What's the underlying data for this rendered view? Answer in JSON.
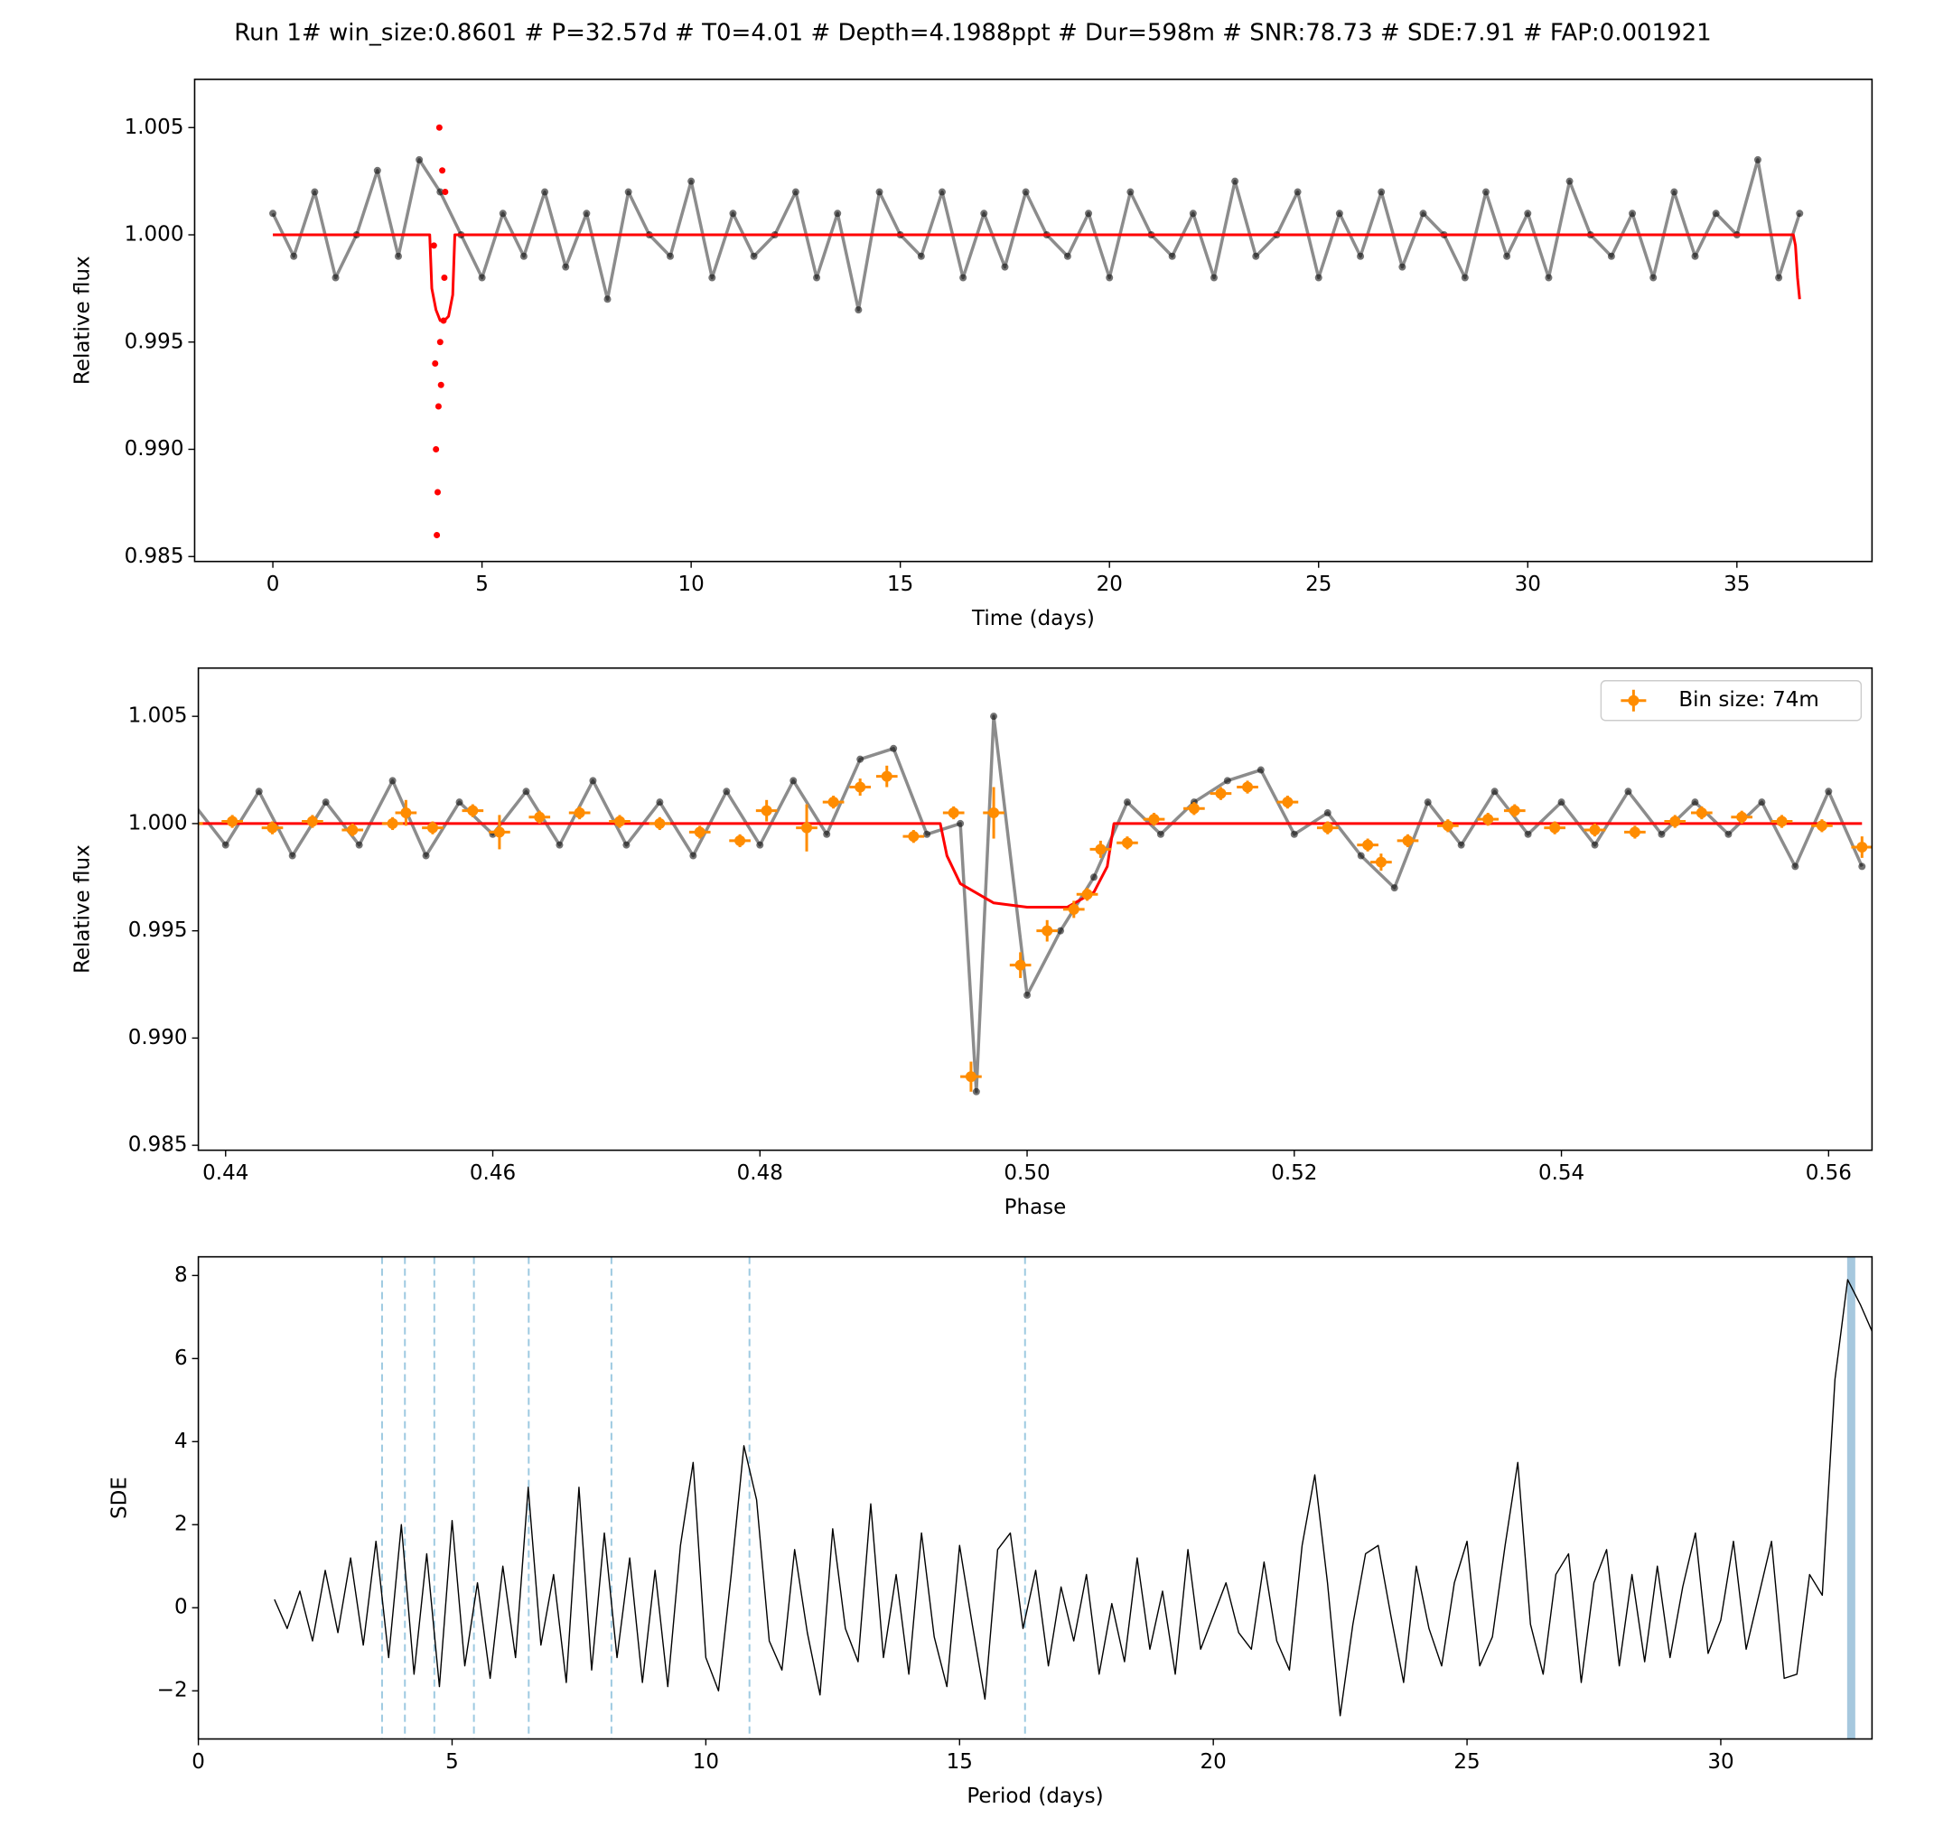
{
  "title": "Run 1# win_size:0.8601 # P=32.57d # T0=4.01 # Depth=4.1988ppt # Dur=598m # SNR:78.73 # SDE:7.91 # FAP:0.001921",
  "chart_data": [
    {
      "type": "scatter",
      "xlabel": "Time (days)",
      "ylabel": "Relative flux",
      "xlim": [
        -1.87,
        38.23
      ],
      "ylim": [
        0.98477,
        1.00725
      ],
      "xticks": [
        0,
        5,
        10,
        15,
        20,
        25,
        30,
        35
      ],
      "yticks": [
        0.985,
        {
          "value": 0.99,
          "label": "0.990"
        },
        0.995,
        {
          "value": 1,
          "label": "1.000"
        },
        1.005
      ],
      "series": [
        {
          "style": "trace",
          "color": "#000000",
          "x": [
            0,
            0.5,
            1,
            1.5,
            2,
            2.5,
            3,
            3.5,
            4,
            4.5,
            5,
            5.5,
            6,
            6.5,
            7,
            7.5,
            8,
            8.5,
            9,
            9.5,
            10,
            10.5,
            11,
            11.5,
            12,
            12.5,
            13,
            13.5,
            14,
            14.5,
            15,
            15.5,
            16,
            16.5,
            17,
            17.5,
            18,
            18.5,
            19,
            19.5,
            20,
            20.5,
            21,
            21.5,
            22,
            22.5,
            23,
            23.5,
            24,
            24.5,
            25,
            25.5,
            26,
            26.5,
            27,
            27.5,
            28,
            28.5,
            29,
            29.5,
            30,
            30.5,
            31,
            31.5,
            32,
            32.5,
            33,
            33.5,
            34,
            34.5,
            35,
            35.5,
            36,
            36.5
          ],
          "values": [
            1.001,
            0.999,
            1.002,
            0.998,
            1.0,
            1.003,
            0.999,
            1.0035,
            1.002,
            1.0,
            0.998,
            1.001,
            0.999,
            1.002,
            0.9985,
            1.001,
            0.997,
            1.002,
            1.0,
            0.999,
            1.0025,
            0.998,
            1.001,
            0.999,
            1.0,
            1.002,
            0.998,
            1.001,
            0.9965,
            1.002,
            1.0,
            0.999,
            1.002,
            0.998,
            1.001,
            0.9985,
            1.002,
            1.0,
            0.999,
            1.001,
            0.998,
            1.002,
            1.0,
            0.999,
            1.001,
            0.998,
            1.0025,
            0.999,
            1.0,
            1.002,
            0.998,
            1.001,
            0.999,
            1.002,
            0.9985,
            1.001,
            1.0,
            0.998,
            1.002,
            0.999,
            1.001,
            0.998,
            1.0025,
            1.0,
            0.999,
            1.001,
            0.998,
            1.002,
            0.999,
            1.001,
            1.0,
            1.0035,
            0.998,
            1.001
          ]
        },
        {
          "style": "points",
          "color": "#ff0000",
          "x": [
            3.85,
            3.88,
            3.9,
            3.92,
            3.94,
            3.96,
            3.98,
            4.0,
            4.02,
            4.05,
            4.08,
            4.1,
            4.12
          ],
          "values": [
            0.9995,
            0.994,
            0.99,
            0.986,
            0.988,
            0.992,
            1.005,
            0.995,
            0.993,
            1.003,
            0.996,
            0.998,
            1.002
          ]
        },
        {
          "style": "line",
          "color": "#ff0000",
          "x": [
            0,
            3.75,
            3.8,
            3.9,
            4.0,
            4.1,
            4.2,
            4.3,
            4.35,
            36.35,
            36.4,
            36.45,
            36.5
          ],
          "values": [
            1,
            1,
            0.9975,
            0.9965,
            0.996,
            0.996,
            0.9962,
            0.9972,
            1,
            1,
            0.9995,
            0.998,
            0.997
          ]
        }
      ]
    },
    {
      "type": "scatter",
      "xlabel": "Phase",
      "ylabel": "Relative flux",
      "xlim": [
        0.43796,
        0.56325
      ],
      "ylim": [
        0.98477,
        1.00725
      ],
      "xticks": [
        0.44,
        0.46,
        0.48,
        {
          "value": 0.5,
          "label": "0.50"
        },
        0.52,
        0.54,
        0.56
      ],
      "yticks": [
        0.985,
        {
          "value": 0.99,
          "label": "0.990"
        },
        0.995,
        {
          "value": 1,
          "label": "1.000"
        },
        1.005
      ],
      "legend": "upper right",
      "series": [
        {
          "style": "trace",
          "color": "#000000",
          "x": [
            0.4375,
            0.44,
            0.4425,
            0.445,
            0.4475,
            0.45,
            0.4525,
            0.455,
            0.4575,
            0.46,
            0.4625,
            0.465,
            0.4675,
            0.47,
            0.4725,
            0.475,
            0.4775,
            0.48,
            0.4825,
            0.485,
            0.4875,
            0.49,
            0.4925,
            0.495,
            0.4962,
            0.4975,
            0.5,
            0.5025,
            0.505,
            0.5075,
            0.51,
            0.5125,
            0.515,
            0.5175,
            0.52,
            0.5225,
            0.525,
            0.5275,
            0.53,
            0.5325,
            0.535,
            0.5375,
            0.54,
            0.5425,
            0.545,
            0.5475,
            0.55,
            0.5525,
            0.555,
            0.5575,
            0.56,
            0.5625
          ],
          "values": [
            1.001,
            0.999,
            1.0015,
            0.9985,
            1.001,
            0.999,
            1.002,
            0.9985,
            1.001,
            0.9995,
            1.0015,
            0.999,
            1.002,
            0.999,
            1.001,
            0.9985,
            1.0015,
            0.999,
            1.002,
            0.9995,
            1.003,
            1.0035,
            0.9995,
            1.0,
            0.9875,
            1.005,
            0.992,
            0.995,
            0.9975,
            1.001,
            0.9995,
            1.001,
            1.002,
            1.0025,
            0.9995,
            1.0005,
            0.9985,
            0.997,
            1.001,
            0.999,
            1.0015,
            0.9995,
            1.001,
            0.999,
            1.0015,
            0.9995,
            1.001,
            0.9995,
            1.001,
            0.998,
            1.0015,
            0.998
          ]
        },
        {
          "style": "line",
          "color": "#ff0000",
          "x": [
            0.4375,
            0.4935,
            0.494,
            0.495,
            0.4975,
            0.5,
            0.503,
            0.505,
            0.506,
            0.5065,
            0.5625
          ],
          "values": [
            1,
            1,
            0.9985,
            0.9972,
            0.9963,
            0.9961,
            0.9961,
            0.9968,
            0.998,
            1,
            1
          ]
        },
        {
          "style": "errorbar",
          "name": "Bin size: 74m",
          "color": "#ff8c00",
          "xerr": 0.0008,
          "x": [
            0.4375,
            0.4405,
            0.4435,
            0.4465,
            0.4495,
            0.4525,
            0.4535,
            0.4555,
            0.4585,
            0.4605,
            0.4635,
            0.4665,
            0.4695,
            0.4725,
            0.4755,
            0.4785,
            0.4805,
            0.4835,
            0.4855,
            0.4875,
            0.4895,
            0.4915,
            0.4945,
            0.4958,
            0.4975,
            0.4995,
            0.5015,
            0.5035,
            0.5045,
            0.5055,
            0.5075,
            0.5095,
            0.5125,
            0.5145,
            0.5165,
            0.5195,
            0.5225,
            0.5255,
            0.5265,
            0.5285,
            0.5315,
            0.5345,
            0.5365,
            0.5395,
            0.5425,
            0.5455,
            0.5485,
            0.5505,
            0.5535,
            0.5565,
            0.5595,
            0.5625
          ],
          "values": [
            1.0,
            1.0001,
            0.9998,
            1.0001,
            0.9997,
            1.0,
            1.0005,
            0.9998,
            1.0006,
            0.9996,
            1.0003,
            1.0005,
            1.0001,
            1.0,
            0.9996,
            0.9992,
            1.0006,
            0.9998,
            1.001,
            1.0017,
            1.0022,
            0.9994,
            1.0005,
            0.9882,
            1.0005,
            0.9934,
            0.995,
            0.996,
            0.9967,
            0.9988,
            0.9991,
            1.0002,
            1.0007,
            1.0014,
            1.0017,
            1.001,
            0.9998,
            0.999,
            0.9982,
            0.9992,
            0.9999,
            1.0002,
            1.0006,
            0.9998,
            0.9997,
            0.9996,
            1.0001,
            1.0005,
            1.0003,
            1.0001,
            0.9999,
            0.9989
          ],
          "errors": [
            0.0003,
            0.0003,
            0.0003,
            0.0003,
            0.0003,
            0.0003,
            0.0006,
            0.0003,
            0.0003,
            0.0008,
            0.0003,
            0.0003,
            0.0003,
            0.0003,
            0.0003,
            0.0003,
            0.0005,
            0.0011,
            0.0003,
            0.0004,
            0.0005,
            0.0003,
            0.0003,
            0.0007,
            0.0012,
            0.0006,
            0.0005,
            0.0004,
            0.0003,
            0.0004,
            0.0003,
            0.0003,
            0.0003,
            0.0003,
            0.0003,
            0.0003,
            0.0003,
            0.0003,
            0.0004,
            0.0003,
            0.0003,
            0.0003,
            0.0003,
            0.0003,
            0.0003,
            0.0003,
            0.0003,
            0.0003,
            0.0003,
            0.0003,
            0.0003,
            0.0005
          ]
        }
      ]
    },
    {
      "type": "line",
      "xlabel": "Period (days)",
      "ylabel": "SDE",
      "xlim": [
        0,
        32.98
      ],
      "ylim": [
        -3.16,
        8.45
      ],
      "xticks": [
        0,
        5,
        10,
        15,
        20,
        25,
        30
      ],
      "yticks": [
        {
          "value": -2,
          "label": "−2"
        },
        0,
        2,
        4,
        6,
        8
      ],
      "vlines": {
        "color": "#9ecae1",
        "x": [
          3.62,
          4.07,
          4.65,
          5.43,
          6.51,
          8.14,
          10.86,
          16.29
        ]
      },
      "highlight": {
        "color": "#a6c8de",
        "x": 32.57
      },
      "series": [
        {
          "style": "line",
          "color": "#000000",
          "x": [
            1.5,
            1.75,
            2,
            2.25,
            2.5,
            2.75,
            3,
            3.25,
            3.5,
            3.75,
            4,
            4.25,
            4.5,
            4.75,
            5,
            5.25,
            5.5,
            5.75,
            6,
            6.25,
            6.5,
            6.75,
            7,
            7.25,
            7.5,
            7.75,
            8,
            8.25,
            8.5,
            8.75,
            9,
            9.25,
            9.5,
            9.75,
            10,
            10.25,
            10.5,
            10.75,
            11,
            11.25,
            11.5,
            11.75,
            12,
            12.25,
            12.5,
            12.75,
            13,
            13.25,
            13.5,
            13.75,
            14,
            14.25,
            14.5,
            14.75,
            15,
            15.25,
            15.5,
            15.75,
            16,
            16.25,
            16.5,
            16.75,
            17,
            17.25,
            17.5,
            17.75,
            18,
            18.25,
            18.5,
            18.75,
            19,
            19.25,
            19.5,
            19.75,
            20,
            20.25,
            20.5,
            20.75,
            21,
            21.25,
            21.5,
            21.75,
            22,
            22.25,
            22.5,
            22.75,
            23,
            23.25,
            23.5,
            23.75,
            24,
            24.25,
            24.5,
            24.75,
            25,
            25.25,
            25.5,
            25.75,
            26,
            26.25,
            26.5,
            26.75,
            27,
            27.25,
            27.5,
            27.75,
            28,
            28.25,
            28.5,
            28.75,
            29,
            29.25,
            29.5,
            29.75,
            30,
            30.25,
            30.5,
            30.75,
            31,
            31.25,
            31.5,
            31.75,
            32,
            32.25,
            32.5,
            32.75,
            33
          ],
          "values": [
            0.2,
            -0.5,
            0.4,
            -0.8,
            0.9,
            -0.6,
            1.2,
            -0.9,
            1.6,
            -1.2,
            2.0,
            -1.6,
            1.3,
            -1.9,
            2.1,
            -1.4,
            0.6,
            -1.7,
            1.0,
            -1.2,
            2.9,
            -0.9,
            0.8,
            -1.8,
            2.9,
            -1.5,
            1.8,
            -1.2,
            1.2,
            -1.8,
            0.9,
            -1.9,
            1.5,
            3.5,
            -1.2,
            -2.0,
            0.8,
            3.9,
            2.6,
            -0.8,
            -1.5,
            1.4,
            -0.6,
            -2.1,
            1.9,
            -0.5,
            -1.3,
            2.5,
            -1.2,
            0.8,
            -1.6,
            1.8,
            -0.7,
            -1.9,
            1.5,
            -0.4,
            -2.2,
            1.4,
            1.8,
            -0.5,
            0.9,
            -1.4,
            0.5,
            -0.8,
            0.8,
            -1.6,
            0.1,
            -1.3,
            1.2,
            -1.0,
            0.4,
            -1.6,
            1.4,
            -1.0,
            -0.2,
            0.6,
            -0.6,
            -1.0,
            1.1,
            -0.8,
            -1.5,
            1.5,
            3.2,
            0.6,
            -2.6,
            -0.4,
            1.3,
            1.5,
            -0.2,
            -1.8,
            1.0,
            -0.5,
            -1.4,
            0.6,
            1.6,
            -1.4,
            -0.7,
            1.5,
            3.5,
            -0.4,
            -1.6,
            0.8,
            1.3,
            -1.8,
            0.6,
            1.4,
            -1.4,
            0.8,
            -1.3,
            1.0,
            -1.2,
            0.5,
            1.8,
            -1.1,
            -0.3,
            1.6,
            -1.0,
            0.3,
            1.6,
            -1.7,
            -1.6,
            0.8,
            0.3,
            5.5,
            7.9,
            7.3,
            6.6
          ]
        }
      ]
    }
  ]
}
